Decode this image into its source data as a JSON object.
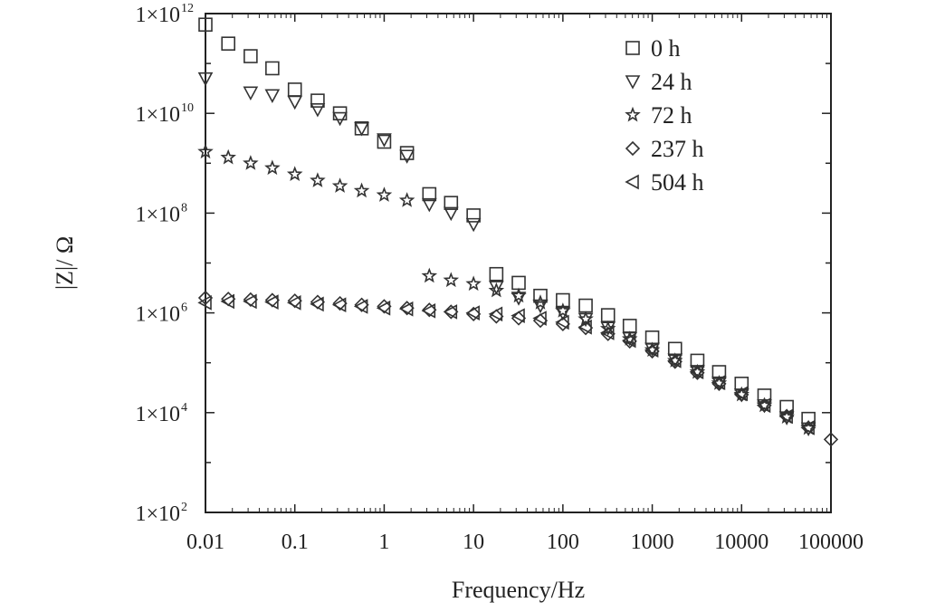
{
  "chart_data": {
    "type": "scatter",
    "title": "",
    "xlabel": "Frequency/Hz",
    "ylabel": "|Z|/ Ω",
    "x_scale": "log",
    "y_scale": "log",
    "xlim": [
      0.01,
      100000
    ],
    "ylim": [
      100,
      1000000000000
    ],
    "x_ticks": [
      {
        "value": 0.01,
        "label": "0.01"
      },
      {
        "value": 0.1,
        "label": "0.1"
      },
      {
        "value": 1,
        "label": "1"
      },
      {
        "value": 10,
        "label": "10"
      },
      {
        "value": 100,
        "label": "100"
      },
      {
        "value": 1000,
        "label": "1000"
      },
      {
        "value": 10000,
        "label": "10000"
      },
      {
        "value": 100000,
        "label": "100000"
      }
    ],
    "y_ticks": [
      {
        "value": 100,
        "label": "1×10",
        "exp": "2"
      },
      {
        "value": 10000,
        "label": "1×10",
        "exp": "4"
      },
      {
        "value": 1000000,
        "label": "1×10",
        "exp": "6"
      },
      {
        "value": 100000000,
        "label": "1×10",
        "exp": "8"
      },
      {
        "value": 10000000000,
        "label": "1×10",
        "exp": "10"
      },
      {
        "value": 1000000000000,
        "label": "1×10",
        "exp": "12"
      }
    ],
    "grid": false,
    "legend_position": "top-right",
    "series": [
      {
        "name": "0 h",
        "marker": "square",
        "x": [
          0.01,
          0.018,
          0.032,
          0.056,
          0.1,
          0.18,
          0.32,
          0.56,
          1.0,
          1.8,
          3.2,
          5.6,
          10,
          18,
          32,
          56,
          100,
          180,
          320,
          560,
          1000,
          1800,
          3200,
          5600,
          10000,
          18000,
          32000,
          56000
        ],
        "y": [
          600000000000,
          250000000000,
          140000000000,
          80000000000,
          30000000000,
          18000000000,
          10000000000,
          5000000000,
          2700000000,
          1600000000,
          240000000,
          160000000,
          90000000,
          6000000,
          4000000,
          2200000,
          1800000,
          1400000,
          900000,
          550000,
          320000,
          190000,
          110000,
          65000,
          38000,
          22000,
          13000,
          7500
        ]
      },
      {
        "name": "24 h",
        "marker": "triangle-down",
        "x": [
          0.01,
          0.032,
          0.056,
          0.1,
          0.18,
          0.32,
          0.56,
          1.0,
          1.8,
          3.2,
          5.6,
          10,
          18,
          32,
          56,
          100,
          180,
          320,
          560,
          1000,
          1800,
          3200,
          5600,
          10000,
          18000,
          32000,
          56000
        ],
        "y": [
          50000000000,
          26000000000,
          23000000000,
          17000000000,
          12000000000,
          8000000000,
          5000000000,
          3000000000,
          1400000000,
          150000000,
          100000000,
          60000000,
          3300000,
          2000000,
          1400000,
          1000000,
          750000,
          500000,
          310000,
          190000,
          115000,
          68000,
          40000,
          23000,
          14000,
          8000,
          4800
        ]
      },
      {
        "name": "72 h",
        "marker": "star",
        "x": [
          0.01,
          0.018,
          0.032,
          0.056,
          0.1,
          0.18,
          0.32,
          0.56,
          1.0,
          1.8,
          3.2,
          5.6,
          10,
          18,
          32,
          56,
          100,
          180,
          320,
          560,
          1000,
          1800,
          3200,
          5600,
          10000,
          18000,
          32000,
          56000
        ],
        "y": [
          1700000000,
          1300000000,
          1000000000,
          800000000,
          600000000,
          450000000,
          350000000,
          280000000,
          230000000,
          180000000,
          5500000,
          4500000,
          3800000,
          2800000,
          2200000,
          1600000,
          1100000,
          750000,
          480000,
          300000,
          180000,
          110000,
          65000,
          39000,
          23000,
          14000,
          8200,
          4900
        ]
      },
      {
        "name": "237 h",
        "marker": "diamond",
        "x": [
          0.01,
          0.018,
          0.032,
          0.056,
          0.1,
          0.18,
          0.32,
          0.56,
          1.0,
          1.8,
          3.2,
          5.6,
          10,
          18,
          32,
          56,
          100,
          180,
          320,
          560,
          1000,
          1800,
          3200,
          5600,
          10000,
          18000,
          32000,
          56000,
          100000
        ],
        "y": [
          2000000,
          1900000,
          1850000,
          1800000,
          1750000,
          1650000,
          1550000,
          1450000,
          1350000,
          1250000,
          1150000,
          1050000,
          950000,
          850000,
          780000,
          700000,
          600000,
          500000,
          380000,
          270000,
          170000,
          105000,
          63000,
          38000,
          23000,
          14000,
          8500,
          5000,
          2900
        ]
      },
      {
        "name": "504 h",
        "marker": "triangle-left",
        "x": [
          0.01,
          0.018,
          0.032,
          0.056,
          0.1,
          0.18,
          0.32,
          0.56,
          1.0,
          1.8,
          3.2,
          5.6,
          10,
          18,
          32,
          56,
          100,
          180,
          320,
          560,
          1000,
          1800,
          3200,
          5600,
          10000,
          18000,
          32000,
          56000
        ],
        "y": [
          1600000,
          1700000,
          1700000,
          1650000,
          1600000,
          1500000,
          1450000,
          1350000,
          1250000,
          1200000,
          1100000,
          1050000,
          1000000,
          950000,
          880000,
          780000,
          650000,
          520000,
          400000,
          280000,
          180000,
          110000,
          66000,
          40000,
          24000,
          14000,
          8400,
          5000
        ]
      }
    ]
  }
}
